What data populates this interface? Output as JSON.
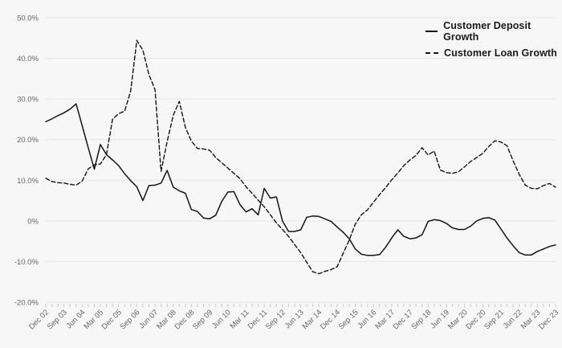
{
  "chart": {
    "background_color": "#f7f7f7",
    "grid_color": "#e5e5e5",
    "tick_color": "#c8c8c8",
    "line_color": "#141414",
    "axis_label_color": "#666666"
  },
  "legend": {
    "items": [
      {
        "label": "Customer Deposit Growth",
        "style": "solid"
      },
      {
        "label": "Customer Loan Growth",
        "style": "dashed"
      }
    ]
  },
  "chart_data": {
    "type": "line",
    "title": "",
    "xlabel": "",
    "ylabel": "",
    "grid": true,
    "legend_position": "top-right",
    "ylim": [
      -20,
      50
    ],
    "yticks": [
      {
        "value": 50,
        "label": "50.0%"
      },
      {
        "value": 40,
        "label": "40.0%"
      },
      {
        "value": 30,
        "label": "30.0%"
      },
      {
        "value": 20,
        "label": "20.0%"
      },
      {
        "value": 10,
        "label": "10.0%"
      },
      {
        "value": 0,
        "label": "0%"
      },
      {
        "value": -10,
        "label": "-10.0%"
      },
      {
        "value": -20,
        "label": "-20.0%"
      }
    ],
    "x_label_every": 3,
    "x": [
      "Dec 02",
      "Mar 03",
      "Jun 03",
      "Sep 03",
      "Dec 03",
      "Mar 04",
      "Jun 04",
      "Sep 04",
      "Dec 04",
      "Mar 05",
      "Jun 05",
      "Sep 05",
      "Dec 05",
      "Mar 06",
      "Jun 06",
      "Sep 06",
      "Dec 06",
      "Mar 07",
      "Jun 07",
      "Sep 07",
      "Dec 07",
      "Mar 08",
      "Jun 08",
      "Sep 08",
      "Dec 08",
      "Mar 09",
      "Jun 09",
      "Sep 09",
      "Dec 09",
      "Mar 10",
      "Jun 10",
      "Sep 10",
      "Dec 10",
      "Mar 11",
      "Jun 11",
      "Sep 11",
      "Dec 11",
      "Mar 12",
      "Jun 12",
      "Sep 12",
      "Dec 12",
      "Mar 13",
      "Jun 13",
      "Sep 13",
      "Dec 13",
      "Mar 14",
      "Jun 14",
      "Sep 14",
      "Dec 14",
      "Mar 15",
      "Jun 15",
      "Sep 15",
      "Dec 15",
      "Mar 16",
      "Jun 16",
      "Sep 16",
      "Dec 16",
      "Mar 17",
      "Jun 17",
      "Sep 17",
      "Dec 17",
      "Mar 18",
      "Jun 18",
      "Sep 18",
      "Dec 18",
      "Mar 19",
      "Jun 19",
      "Sep 19",
      "Dec 19",
      "Mar 20",
      "Jun 20",
      "Sep 20",
      "Dec 20",
      "Mar 21",
      "Jun 21",
      "Sep 21",
      "Dec 21",
      "Mar 22",
      "Jun 22",
      "Sep 22",
      "Dec 22",
      "Mar 23",
      "Jun 23",
      "Sep 23",
      "Dec 23"
    ],
    "series": [
      {
        "name": "Customer Deposit Growth",
        "style": "solid",
        "values": [
          24.4,
          25.1,
          25.9,
          26.6,
          27.5,
          28.8,
          23.4,
          18.0,
          12.7,
          18.8,
          16.3,
          15.0,
          13.6,
          11.6,
          9.9,
          8.4,
          5.0,
          8.7,
          8.8,
          9.3,
          12.4,
          8.3,
          7.4,
          6.8,
          2.8,
          2.3,
          0.7,
          0.5,
          1.4,
          4.8,
          7.1,
          7.2,
          4.0,
          2.2,
          3.0,
          1.5,
          8.0,
          5.6,
          5.9,
          0.0,
          -2.6,
          -2.6,
          -2.2,
          0.9,
          1.2,
          1.1,
          0.5,
          -0.1,
          -1.5,
          -2.8,
          -4.4,
          -6.9,
          -8.2,
          -8.5,
          -8.5,
          -8.3,
          -6.5,
          -4.2,
          -2.2,
          -3.8,
          -4.4,
          -4.2,
          -3.4,
          -0.1,
          0.3,
          0.1,
          -0.6,
          -1.7,
          -2.1,
          -2.1,
          -1.3,
          0.0,
          0.6,
          0.8,
          0.2,
          -2.0,
          -4.2,
          -6.1,
          -7.8,
          -8.4,
          -8.4,
          -7.5,
          -6.9,
          -6.3,
          -5.9
        ]
      },
      {
        "name": "Customer Loan Growth",
        "style": "dashed",
        "values": [
          10.5,
          9.7,
          9.4,
          9.3,
          9.0,
          8.8,
          9.8,
          12.8,
          13.8,
          14.0,
          16.3,
          25.0,
          26.4,
          27.0,
          32.0,
          44.4,
          42.0,
          36.0,
          32.3,
          12.2,
          19.5,
          26.0,
          29.4,
          23.0,
          19.6,
          17.8,
          17.7,
          17.4,
          15.6,
          14.3,
          13.0,
          11.7,
          10.4,
          8.4,
          6.8,
          5.1,
          3.5,
          1.5,
          -0.5,
          -2.1,
          -3.8,
          -5.8,
          -7.8,
          -10.2,
          -12.5,
          -13.0,
          -12.4,
          -12.0,
          -11.3,
          -8.0,
          -4.7,
          -0.8,
          1.5,
          2.7,
          4.6,
          6.5,
          8.2,
          10.1,
          11.8,
          13.6,
          15.0,
          16.1,
          18.0,
          16.2,
          17.2,
          12.5,
          11.9,
          11.7,
          12.1,
          13.3,
          14.6,
          15.6,
          16.6,
          18.3,
          19.7,
          19.4,
          18.5,
          14.8,
          11.5,
          8.8,
          8.0,
          7.9,
          8.7,
          9.2,
          8.3
        ]
      }
    ]
  }
}
